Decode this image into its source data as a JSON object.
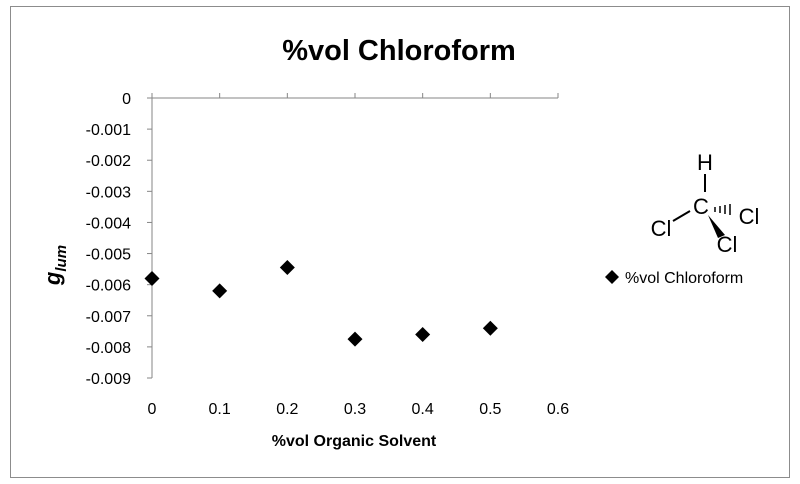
{
  "chart_data": {
    "type": "scatter",
    "title": "%vol Chloroform",
    "xlabel": "%vol Organic  Solvent",
    "ylabel_main": "g",
    "ylabel_sub": "lum",
    "xlim": [
      0,
      0.6
    ],
    "ylim": [
      -0.009,
      0
    ],
    "x_ticks": [
      "0",
      "0.1",
      "0.2",
      "0.3",
      "0.4",
      "0.5",
      "0.6"
    ],
    "y_ticks": [
      "0",
      "-0.001",
      "-0.002",
      "-0.003",
      "-0.004",
      "-0.005",
      "-0.006",
      "-0.007",
      "-0.008",
      "-0.009"
    ],
    "grid": false,
    "legend_position": "right",
    "series": [
      {
        "name": "%vol Chloroform",
        "marker": "diamond",
        "color": "#000000",
        "points": [
          {
            "x": 0.0,
            "y": -0.0058
          },
          {
            "x": 0.1,
            "y": -0.0062
          },
          {
            "x": 0.2,
            "y": -0.00545
          },
          {
            "x": 0.3,
            "y": -0.00775
          },
          {
            "x": 0.4,
            "y": -0.0076
          },
          {
            "x": 0.5,
            "y": -0.0074
          }
        ]
      }
    ]
  },
  "molecule": {
    "top": "H",
    "center": "C",
    "left": "Cl",
    "right": "Cl",
    "bottom": "Cl"
  }
}
